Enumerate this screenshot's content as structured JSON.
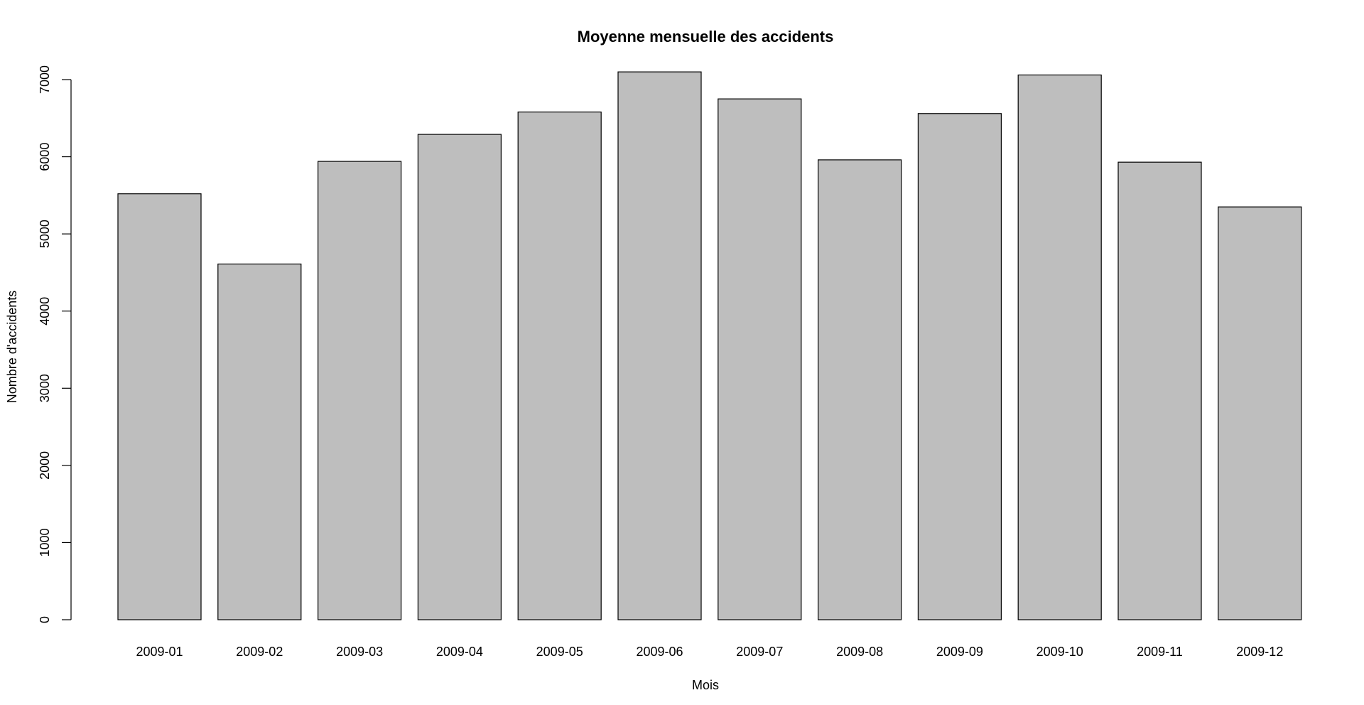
{
  "chart_data": {
    "type": "bar",
    "title": "Moyenne mensuelle des accidents",
    "xlabel": "Mois",
    "ylabel": "Nombre d'accidents",
    "categories": [
      "2009-01",
      "2009-02",
      "2009-03",
      "2009-04",
      "2009-05",
      "2009-06",
      "2009-07",
      "2009-08",
      "2009-09",
      "2009-10",
      "2009-11",
      "2009-12"
    ],
    "values": [
      5520,
      4610,
      5940,
      6290,
      6580,
      7100,
      6750,
      5960,
      6560,
      7060,
      5930,
      5350
    ],
    "ylim": [
      0,
      7000
    ],
    "y_ticks": [
      0,
      1000,
      2000,
      3000,
      4000,
      5000,
      6000,
      7000
    ],
    "bar_color": "#bebebe",
    "grid": false,
    "legend": "none"
  }
}
